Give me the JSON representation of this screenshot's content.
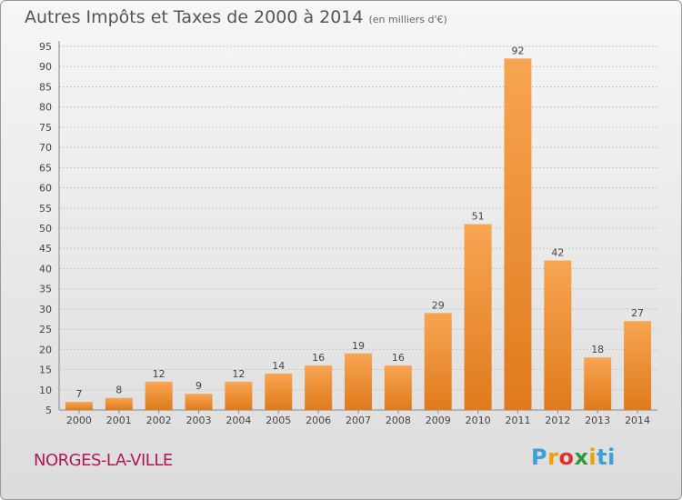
{
  "header": {
    "title": "Autres Impôts et Taxes de 2000 à 2014",
    "unit": "(en milliers d'€)"
  },
  "footer": {
    "commune": "NORGES-LA-VILLE",
    "brand_letters": [
      "P",
      "r",
      "o",
      "x",
      "i",
      "ti"
    ]
  },
  "colors": {
    "bar_top": "#f7a552",
    "bar_bottom": "#e07a1c",
    "commune": "#b0185a"
  },
  "chart_data": {
    "type": "bar",
    "title": "Autres Impôts et Taxes de 2000 à 2014",
    "subtitle": "(en milliers d'€)",
    "categories": [
      "2000",
      "2001",
      "2002",
      "2003",
      "2004",
      "2005",
      "2006",
      "2007",
      "2008",
      "2009",
      "2010",
      "2011",
      "2012",
      "2013",
      "2014"
    ],
    "values": [
      7,
      8,
      12,
      9,
      12,
      14,
      16,
      19,
      16,
      29,
      51,
      92,
      42,
      18,
      27
    ],
    "ylim": [
      5,
      95
    ],
    "yticks": [
      5,
      10,
      15,
      20,
      25,
      30,
      35,
      40,
      45,
      50,
      55,
      60,
      65,
      70,
      75,
      80,
      85,
      90,
      95
    ],
    "grid": true,
    "legend": "none"
  }
}
